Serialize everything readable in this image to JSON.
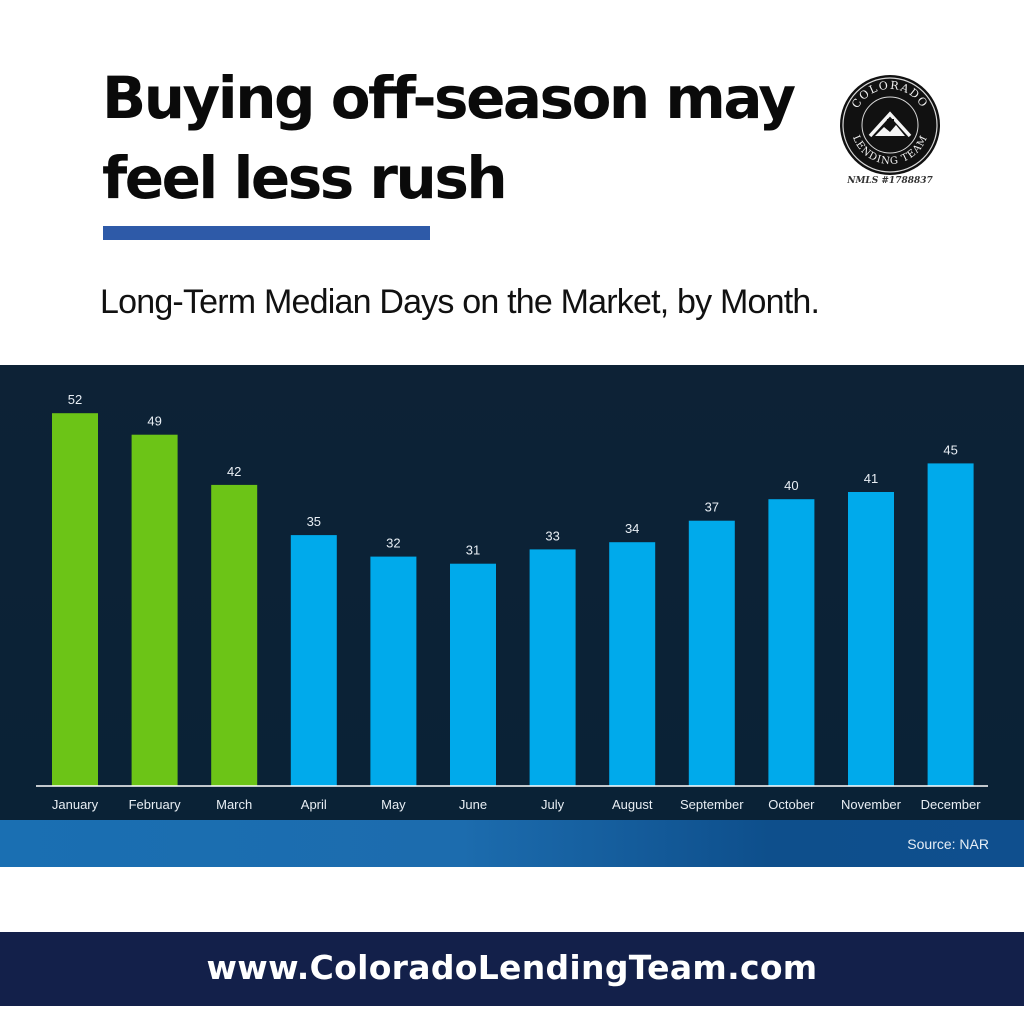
{
  "header": {
    "headline_line1": "Buying off-season may",
    "headline_line2": "feel less rush",
    "subtitle": "Long-Term Median Days on the Market, by Month."
  },
  "logo": {
    "name": "Colorado Lending Team",
    "nmls": "NMLS #1788837"
  },
  "chart_data": {
    "type": "bar",
    "categories": [
      "January",
      "February",
      "March",
      "April",
      "May",
      "June",
      "July",
      "August",
      "September",
      "October",
      "November",
      "December"
    ],
    "values": [
      52,
      49,
      42,
      35,
      32,
      31,
      33,
      34,
      37,
      40,
      41,
      45
    ],
    "title": "",
    "xlabel": "",
    "ylabel": "",
    "ylim": [
      0,
      52
    ],
    "grid": false,
    "data_labels": true,
    "highlighted_categories": [
      "January",
      "February",
      "March"
    ],
    "colors": {
      "highlight": "#6cc417",
      "default": "#00aaeb",
      "label_text": "#e8eef4",
      "axis": "#ffffff"
    }
  },
  "source": "Source: NAR",
  "footer": {
    "url": "www.ColoradoLendingTeam.com"
  }
}
